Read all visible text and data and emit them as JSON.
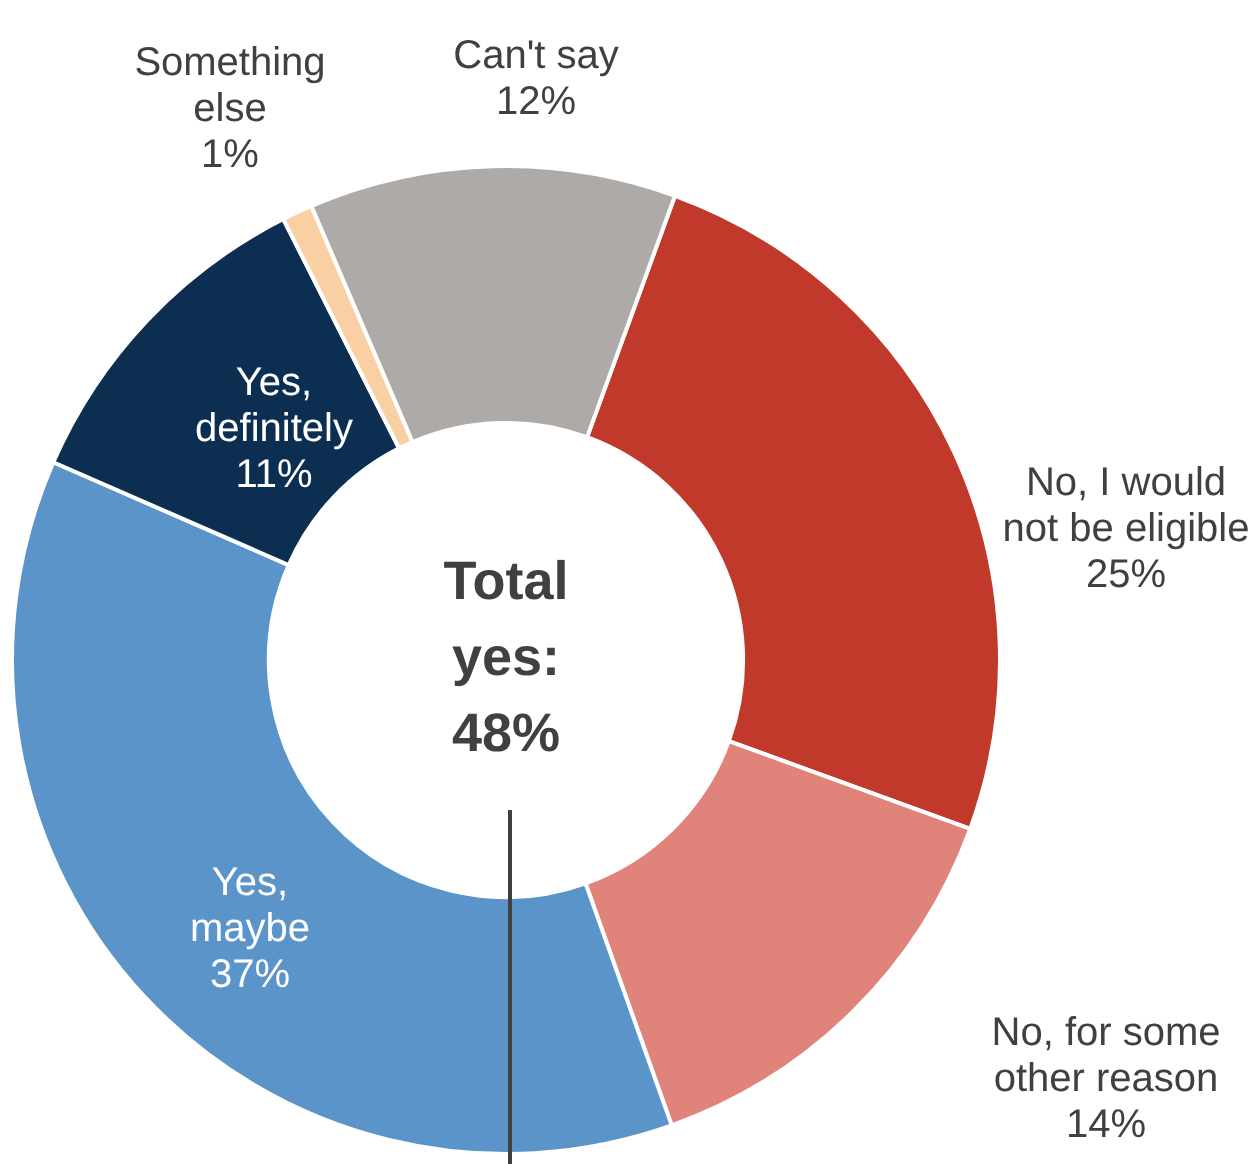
{
  "chart_data": {
    "type": "donut",
    "categories": [
      "No, I would not be eligible",
      "No, for some other reason",
      "Yes, maybe",
      "Yes, definitely",
      "Something else",
      "Can't say"
    ],
    "values": [
      25,
      14,
      37,
      11,
      1,
      12
    ],
    "value_labels": [
      "25%",
      "14%",
      "37%",
      "11%",
      "1%",
      "12%"
    ],
    "colors": [
      "#c0392b",
      "#e0837a",
      "#5b94c8",
      "#0c2f51",
      "#f9d0a3",
      "#aeaaa8"
    ],
    "annotations": [
      "Total yes: 48%"
    ],
    "legend": false
  }
}
